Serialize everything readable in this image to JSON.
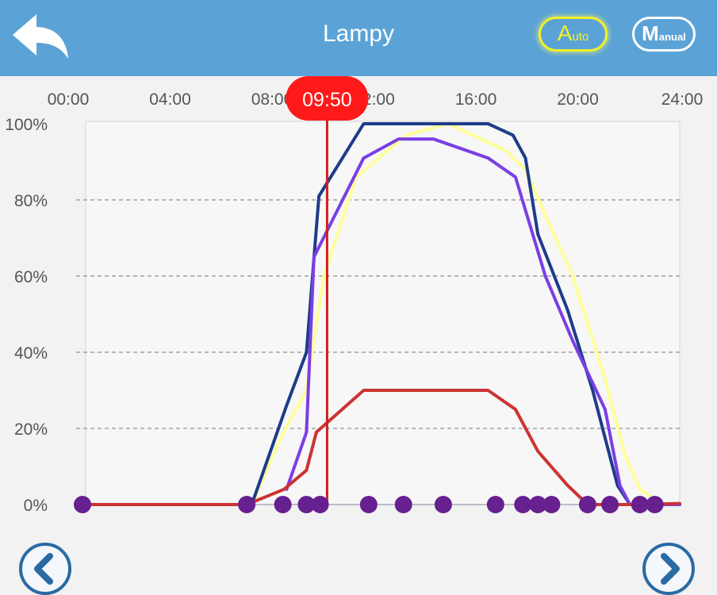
{
  "header": {
    "title": "Lampy",
    "auto_big": "A",
    "auto_small": "uto",
    "manual_big": "M",
    "manual_small": "anual"
  },
  "current_time": "09:50",
  "chart_data": {
    "type": "line",
    "x_ticks": [
      "00:00",
      "04:00",
      "08:00",
      "12:00",
      "16:00",
      "20:00",
      "24:00"
    ],
    "y_ticks": [
      "0%",
      "20%",
      "40%",
      "60%",
      "80%",
      "100%"
    ],
    "xlim": [
      0,
      24
    ],
    "ylim": [
      0,
      100
    ],
    "grid": "horizontal dashed",
    "current_time_hours": 9.83,
    "series": [
      {
        "color": "#ffff99",
        "points": [
          [
            6.8,
            0
          ],
          [
            8,
            18
          ],
          [
            9,
            30
          ],
          [
            9.7,
            60
          ],
          [
            11,
            86
          ],
          [
            13,
            97
          ],
          [
            14.7,
            100
          ],
          [
            17,
            93
          ],
          [
            17.8,
            88
          ],
          [
            18.6,
            76
          ],
          [
            19.7,
            60
          ],
          [
            21,
            33
          ],
          [
            21.8,
            13
          ],
          [
            22.4,
            4
          ],
          [
            23.3,
            0
          ],
          [
            24,
            0
          ]
        ]
      },
      {
        "color": "#1e3c8a",
        "points": [
          [
            6.8,
            0
          ],
          [
            8.2,
            26
          ],
          [
            9,
            40
          ],
          [
            9.5,
            81
          ],
          [
            11.3,
            100
          ],
          [
            16.3,
            100
          ],
          [
            17.3,
            97
          ],
          [
            17.8,
            91
          ],
          [
            18.3,
            71
          ],
          [
            19.5,
            51
          ],
          [
            20.5,
            30
          ],
          [
            21.5,
            5
          ],
          [
            22,
            0
          ],
          [
            24,
            0
          ]
        ]
      },
      {
        "color": "#7b3fe4",
        "points": [
          [
            8.2,
            4
          ],
          [
            9,
            19
          ],
          [
            9.3,
            65
          ],
          [
            11.3,
            91
          ],
          [
            12.7,
            96
          ],
          [
            14.1,
            96
          ],
          [
            16.3,
            91
          ],
          [
            17.4,
            86
          ],
          [
            18.6,
            60
          ],
          [
            19.7,
            43
          ],
          [
            21,
            25
          ],
          [
            21.6,
            5
          ],
          [
            22,
            0
          ],
          [
            24,
            0
          ]
        ]
      },
      {
        "color": "#cc3333",
        "points": [
          [
            0,
            0
          ],
          [
            6.6,
            0
          ],
          [
            8.1,
            4
          ],
          [
            9,
            9
          ],
          [
            9.4,
            19
          ],
          [
            11.3,
            30
          ],
          [
            16.3,
            30
          ],
          [
            17.4,
            25
          ],
          [
            18.3,
            14
          ],
          [
            19.5,
            5
          ],
          [
            20.3,
            0
          ],
          [
            22.4,
            0
          ],
          [
            24,
            0.3
          ]
        ]
      }
    ],
    "schedule_points_hours": [
      0,
      6.6,
      8.05,
      9.0,
      9.55,
      11.5,
      12.9,
      14.5,
      16.6,
      17.7,
      18.3,
      18.85,
      20.3,
      21.2,
      22.4,
      23.0
    ]
  }
}
